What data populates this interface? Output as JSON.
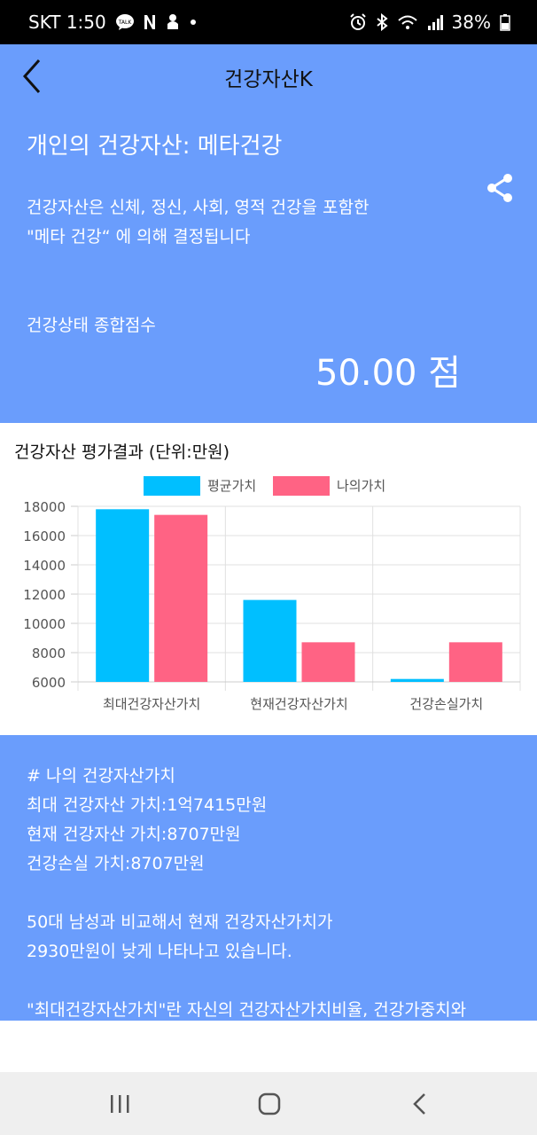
{
  "status_bar": {
    "carrier_time": "SKT 1:50",
    "battery": "38%",
    "icons": [
      "talk-icon",
      "n-icon",
      "android-icon",
      "dot-icon",
      "alarm-icon",
      "bluetooth-icon",
      "wifi-icon",
      "signal-icon",
      "battery-icon"
    ]
  },
  "app_bar": {
    "title": "건강자산K",
    "back_icon": "chevron-left-icon"
  },
  "header": {
    "title": "개인의 건강자산: 메타건강",
    "desc_line1": "건강자산은 신체, 정신, 사회, 영적 건강을 포함한",
    "desc_line2": "\"메타 건강“ 에 의해 결정됩니다",
    "score_label": "건강상태 종합점수",
    "score": "50.00 점",
    "share_icon": "share-icon"
  },
  "chart_section": {
    "title": "건강자산 평가결과 (단위:만원)"
  },
  "chart_data": {
    "type": "bar",
    "title": "건강자산 평가결과 (단위:만원)",
    "categories": [
      "최대건강자산가치",
      "현재건강자산가치",
      "건강손실가치"
    ],
    "series": [
      {
        "name": "평균가치",
        "color": "#00bfff",
        "values": [
          17800,
          11600,
          6200
        ]
      },
      {
        "name": "나의가치",
        "color": "#ff6384",
        "values": [
          17415,
          8707,
          8707
        ]
      }
    ],
    "ylim": [
      6000,
      18000
    ],
    "yticks": [
      6000,
      8000,
      10000,
      12000,
      14000,
      16000,
      18000
    ],
    "ytick_labels": [
      "6000",
      "8000",
      "10000",
      "12000",
      "14000",
      "16000",
      "18000"
    ],
    "grid": true,
    "legend": "top-center"
  },
  "info": {
    "heading": "# 나의 건강자산가치",
    "max_value": "최대 건강자산 가치:1억7415만원",
    "current_value": "현재 건강자산 가치:8707만원",
    "loss_value": "건강손실 가치:8707만원",
    "compare_line1": "50대 남성과 비교해서 현재 건강자산가치가",
    "compare_line2": "2930만원이 낮게 나타나고 있습니다.",
    "definition_line": "\"최대건강자산가치\"란 자신의 건강자산가치비율, 건강가중치와"
  },
  "nav_bar": {
    "icons": [
      "recent-apps-icon",
      "home-icon",
      "back-icon"
    ]
  }
}
